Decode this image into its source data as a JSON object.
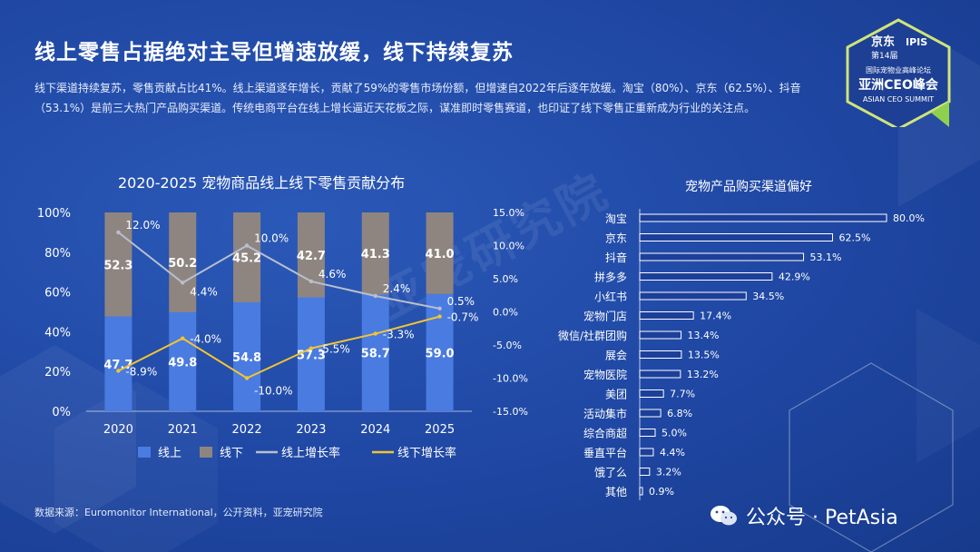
{
  "header": {
    "title": "线上零售占据绝对主导但增速放缓，线下持续复苏",
    "summary": "线下渠道持续复苏，零售贡献占比41%。线上渠道逐年增长，贡献了59%的零售市场份额，但增速自2022年后逐年放缓。淘宝（80%）、京东（62.5%）、抖音（53.1%）是前三大热门产品购买渠道。传统电商平台在线上增长逼近天花板之际，谋准即时零售赛道，也印证了线下零售正重新成为行业的关注点。"
  },
  "badge": {
    "brand": "京东",
    "edition": "第14届",
    "ipis": "IPIS",
    "forum": "国际宠物业高峰论坛",
    "summit_cn": "亚洲CEO峰会",
    "summit_en": "ASIAN CEO SUMMIT"
  },
  "watermark": "亚宠研究院",
  "footer": {
    "source": "数据来源：Euromonitor International，公开资料，亚宠研究院",
    "brand": "公众号 · PetAsia"
  },
  "colors": {
    "online": "#4a7be0",
    "offline": "#8f8580",
    "online_growth": "#b8bfce",
    "offline_growth": "#f2c531",
    "right_bar": "#1c3f99",
    "right_bar_border": "#ffffff"
  },
  "chart_data": [
    {
      "type": "bar",
      "title": "2020-2025 宠物商品线上线下零售贡献分布",
      "categories": [
        "2020",
        "2021",
        "2022",
        "2023",
        "2024",
        "2025"
      ],
      "series": [
        {
          "name": "线上",
          "kind": "stacked-bar",
          "values": [
            47.7,
            49.8,
            54.8,
            57.3,
            58.7,
            59.0
          ],
          "labels": [
            "47.7",
            "49.8",
            "54.8",
            "57.3",
            "58.7",
            "59.0"
          ]
        },
        {
          "name": "线下",
          "kind": "stacked-bar",
          "values": [
            52.3,
            50.2,
            45.2,
            42.7,
            41.3,
            41.0
          ],
          "labels": [
            "52.3",
            "50.2",
            "45.2",
            "42.7",
            "41.3",
            "41.0"
          ]
        },
        {
          "name": "线上增长率",
          "kind": "line",
          "axis": "right",
          "values": [
            12.0,
            4.4,
            10.0,
            4.6,
            2.4,
            0.5
          ],
          "labels": [
            "12.0%",
            "4.4%",
            "10.0%",
            "4.6%",
            "2.4%",
            "0.5%"
          ]
        },
        {
          "name": "线下增长率",
          "kind": "line",
          "axis": "right",
          "values": [
            -8.9,
            -4.0,
            -10.0,
            -5.5,
            -3.3,
            -0.7
          ],
          "labels": [
            "-8.9%",
            "-4.0%",
            "-10.0%",
            "-5.5%",
            "-3.3%",
            "-0.7%"
          ]
        }
      ],
      "ylim": [
        0,
        100
      ],
      "yticks": [
        "0%",
        "20%",
        "40%",
        "60%",
        "80%",
        "100%"
      ],
      "y2lim": [
        -15,
        15
      ],
      "y2ticks": [
        "15.0%",
        "10.0%",
        "5.0%",
        "0.0%",
        "-5.0%",
        "-10.0%",
        "-15.0%"
      ],
      "legend": "bottom",
      "grid": false
    },
    {
      "type": "bar",
      "orientation": "horizontal",
      "title": "宠物产品购买渠道偏好",
      "categories": [
        "淘宝",
        "京东",
        "抖音",
        "拼多多",
        "小红书",
        "宠物门店",
        "微信/社群团购",
        "展会",
        "宠物医院",
        "美团",
        "活动集市",
        "综合商超",
        "垂直平台",
        "饿了么",
        "其他"
      ],
      "values": [
        80.0,
        62.5,
        53.1,
        42.9,
        34.5,
        17.4,
        13.4,
        13.5,
        13.2,
        7.7,
        6.8,
        5.0,
        4.4,
        3.2,
        0.9
      ],
      "labels": [
        "80.0%",
        "62.5%",
        "53.1%",
        "42.9%",
        "34.5%",
        "17.4%",
        "13.4%",
        "13.5%",
        "13.2%",
        "7.7%",
        "6.8%",
        "5.0%",
        "4.4%",
        "3.2%",
        "0.9%"
      ],
      "xlim": [
        0,
        80
      ]
    }
  ]
}
